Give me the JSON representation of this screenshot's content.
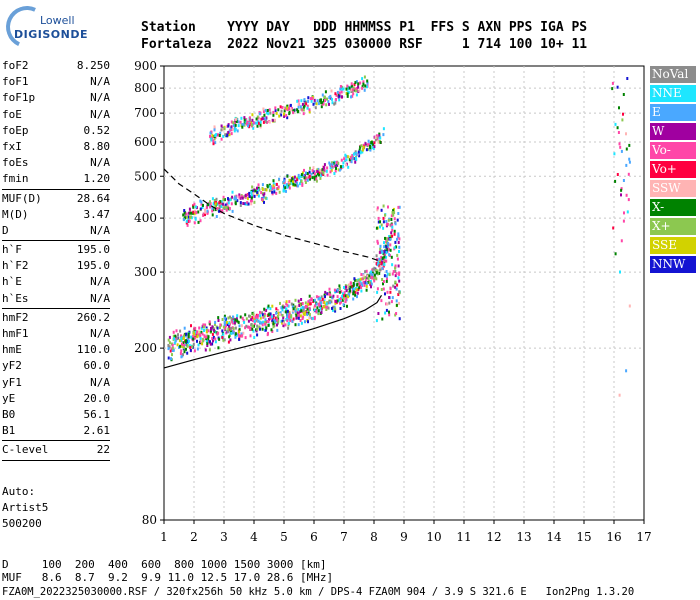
{
  "logo": {
    "line1": "Lowell",
    "line2": "DIGISONDE"
  },
  "header": {
    "labels_line": "Station    YYYY DAY   DDD HHMMSS P1  FFS S AXN PPS IGA PS",
    "values_line": "Fortaleza  2022 Nov21 325 030000 RSF     1 714 100 10+ 11"
  },
  "params": [
    {
      "name": "foF2",
      "value": "8.250"
    },
    {
      "name": "foF1",
      "value": "N/A"
    },
    {
      "name": "foF1p",
      "value": "N/A"
    },
    {
      "name": "foE",
      "value": "N/A"
    },
    {
      "name": "foEp",
      "value": "0.52"
    },
    {
      "name": "fxI",
      "value": "8.80"
    },
    {
      "name": "foEs",
      "value": "N/A"
    },
    {
      "name": "fmin",
      "value": "1.20"
    },
    {
      "sep": true
    },
    {
      "name": "MUF(D)",
      "value": "28.64"
    },
    {
      "name": "M(D)",
      "value": "3.47"
    },
    {
      "name": "D",
      "value": "N/A"
    },
    {
      "sep": true
    },
    {
      "name": "h`F",
      "value": "195.0"
    },
    {
      "name": "h`F2",
      "value": "195.0"
    },
    {
      "name": "h`E",
      "value": "N/A"
    },
    {
      "name": "h`Es",
      "value": "N/A"
    },
    {
      "sep": true
    },
    {
      "name": "hmF2",
      "value": "260.2"
    },
    {
      "name": "hmF1",
      "value": "N/A"
    },
    {
      "name": "hmE",
      "value": "110.0"
    },
    {
      "name": "yF2",
      "value": "60.0"
    },
    {
      "name": "yF1",
      "value": "N/A"
    },
    {
      "name": "yE",
      "value": "20.0"
    },
    {
      "name": "B0",
      "value": "56.1"
    },
    {
      "name": "B1",
      "value": "2.61"
    },
    {
      "sep": true
    },
    {
      "name": "C-level",
      "value": "22"
    },
    {
      "sep": true
    }
  ],
  "auto": {
    "line1": "Auto:",
    "line2": "Artist5",
    "line3": "500200"
  },
  "legend": [
    {
      "label": "NoVal",
      "bg": "#8c8c8c",
      "fg": "#ffffff"
    },
    {
      "label": "NNE",
      "bg": "#1ee6ff",
      "fg": "#ffffff"
    },
    {
      "label": "E",
      "bg": "#4aa8ff",
      "fg": "#ffffff"
    },
    {
      "label": "W",
      "bg": "#a000a0",
      "fg": "#ffffff"
    },
    {
      "label": "Vo-",
      "bg": "#ff46a8",
      "fg": "#ffffff"
    },
    {
      "label": "Vo+",
      "bg": "#ff0040",
      "fg": "#ffffff"
    },
    {
      "label": "SSW",
      "bg": "#ffb4b4",
      "fg": "#ffffff"
    },
    {
      "label": "X-",
      "bg": "#008200",
      "fg": "#ffffff"
    },
    {
      "label": "X+",
      "bg": "#8cc850",
      "fg": "#ffffff"
    },
    {
      "label": "SSE",
      "bg": "#d2d200",
      "fg": "#ffffff"
    },
    {
      "label": "NNW",
      "bg": "#1414d2",
      "fg": "#ffffff"
    }
  ],
  "footer": {
    "line1": "D     100  200  400  600  800 1000 1500 3000 [km]",
    "line2": "MUF   8.6  8.7  9.2  9.9 11.0 12.5 17.0 28.6 [MHz]",
    "line3": "FZA0M_2022325030000.RSF / 320fx256h 50 kHz 5.0 km / DPS-4 FZA0M 904 / 3.9 S 321.6 E   Ion2Png 1.3.20"
  },
  "chart_data": {
    "type": "scatter",
    "title": "",
    "xlabel": "",
    "ylabel": "",
    "xlim": [
      1,
      17
    ],
    "ylim": [
      80,
      900
    ],
    "y_scale": "log",
    "x_ticks": [
      1,
      2,
      3,
      4,
      5,
      6,
      7,
      8,
      9,
      10,
      11,
      12,
      13,
      14,
      15,
      16,
      17
    ],
    "y_ticks": [
      80,
      200,
      300,
      400,
      500,
      600,
      700,
      800,
      900
    ],
    "grid": true,
    "traces": [
      {
        "name": "F2 trace",
        "x": [
          1.1,
          2,
          3,
          4,
          5,
          6,
          7,
          7.6,
          8,
          8.25,
          8.4,
          8.6
        ],
        "y": [
          205,
          212,
          222,
          230,
          240,
          252,
          268,
          285,
          300,
          320,
          345,
          390
        ]
      },
      {
        "name": "F2 2nd hop",
        "x": [
          1.6,
          2.5,
          3.5,
          4.5,
          5.5,
          6.5,
          7.3,
          7.9,
          8.3
        ],
        "y": [
          410,
          425,
          445,
          468,
          495,
          525,
          560,
          600,
          630
        ]
      },
      {
        "name": "F2 3rd hop",
        "x": [
          2.5,
          3.5,
          4.5,
          5.5,
          6.5,
          7.2,
          7.8
        ],
        "y": [
          620,
          660,
          695,
          730,
          765,
          800,
          830
        ]
      }
    ],
    "profile_curve": {
      "x": [
        1.0,
        2,
        3,
        4,
        5,
        6,
        7,
        7.7,
        8.1,
        8.25
      ],
      "y": [
        180,
        188,
        196,
        204,
        212,
        222,
        234,
        245,
        255,
        265
      ]
    },
    "muf_curve": {
      "x": [
        1.0,
        1.5,
        2,
        2.5,
        3,
        4,
        5,
        6,
        7,
        7.8,
        8.2
      ],
      "y": [
        520,
        480,
        455,
        430,
        410,
        385,
        365,
        350,
        335,
        325,
        318
      ]
    }
  }
}
